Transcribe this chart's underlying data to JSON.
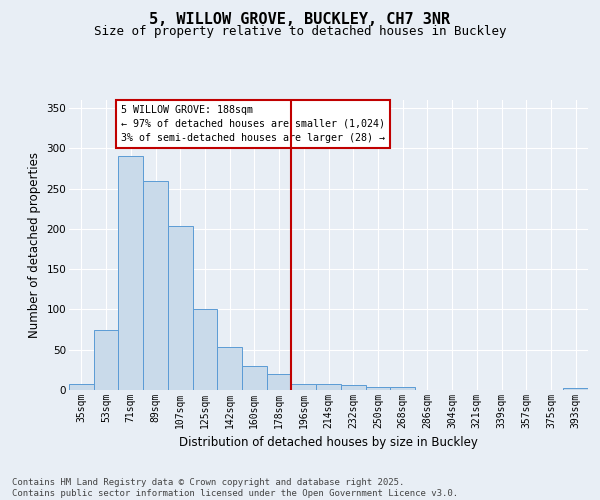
{
  "title": "5, WILLOW GROVE, BUCKLEY, CH7 3NR",
  "subtitle": "Size of property relative to detached houses in Buckley",
  "xlabel": "Distribution of detached houses by size in Buckley",
  "ylabel": "Number of detached properties",
  "categories": [
    "35sqm",
    "53sqm",
    "71sqm",
    "89sqm",
    "107sqm",
    "125sqm",
    "142sqm",
    "160sqm",
    "178sqm",
    "196sqm",
    "214sqm",
    "232sqm",
    "250sqm",
    "268sqm",
    "286sqm",
    "304sqm",
    "321sqm",
    "339sqm",
    "357sqm",
    "375sqm",
    "393sqm"
  ],
  "values": [
    8,
    74,
    290,
    260,
    203,
    100,
    53,
    30,
    20,
    8,
    8,
    6,
    4,
    4,
    0,
    0,
    0,
    0,
    0,
    0,
    2
  ],
  "bar_color": "#c9daea",
  "bar_edge_color": "#5b9bd5",
  "vline_x_index": 8.5,
  "vline_color": "#c00000",
  "annotation_text": "5 WILLOW GROVE: 188sqm\n← 97% of detached houses are smaller (1,024)\n3% of semi-detached houses are larger (28) →",
  "annotation_box_color": "#c00000",
  "ylim": [
    0,
    360
  ],
  "yticks": [
    0,
    50,
    100,
    150,
    200,
    250,
    300,
    350
  ],
  "footer": "Contains HM Land Registry data © Crown copyright and database right 2025.\nContains public sector information licensed under the Open Government Licence v3.0.",
  "bg_color": "#e8eef5",
  "plot_bg_color": "#e8eef5",
  "grid_color": "#ffffff",
  "title_fontsize": 11,
  "subtitle_fontsize": 9,
  "label_fontsize": 8.5,
  "tick_fontsize": 7,
  "footer_fontsize": 6.5
}
